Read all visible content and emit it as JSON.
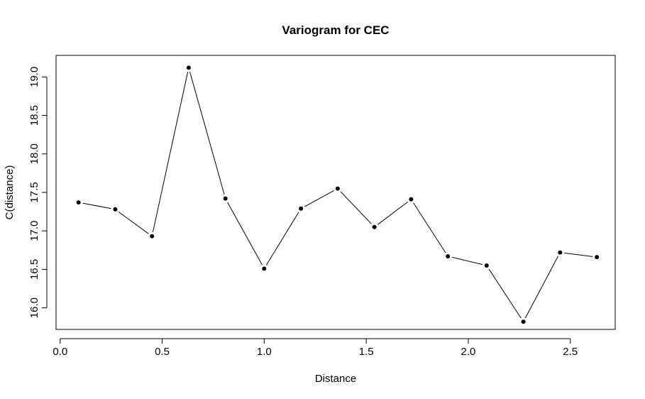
{
  "chart_data": {
    "type": "line",
    "title": "Variogram for CEC",
    "xlabel": "Distance",
    "ylabel": "C(distance)",
    "xlim": [
      -0.02,
      2.72
    ],
    "ylim": [
      15.72,
      19.28
    ],
    "xticks": [
      0.0,
      0.5,
      1.0,
      1.5,
      2.0,
      2.5
    ],
    "xtick_labels": [
      "0.0",
      "0.5",
      "1.0",
      "1.5",
      "2.0",
      "2.5"
    ],
    "yticks": [
      16.0,
      16.5,
      17.0,
      17.5,
      18.0,
      18.5,
      19.0
    ],
    "ytick_labels": [
      "16.0",
      "16.5",
      "17.0",
      "17.5",
      "18.0",
      "18.5",
      "19.0"
    ],
    "grid": false,
    "series": [
      {
        "x": [
          0.09,
          0.27,
          0.45,
          0.63,
          0.81,
          1.0,
          1.18,
          1.36,
          1.54,
          1.72,
          1.9,
          2.09,
          2.27,
          2.45,
          2.63
        ],
        "y": [
          17.37,
          17.28,
          16.93,
          19.12,
          17.42,
          16.51,
          17.29,
          17.55,
          17.05,
          17.41,
          16.67,
          16.55,
          15.82,
          16.72,
          16.66
        ],
        "color": "#000000"
      }
    ]
  }
}
